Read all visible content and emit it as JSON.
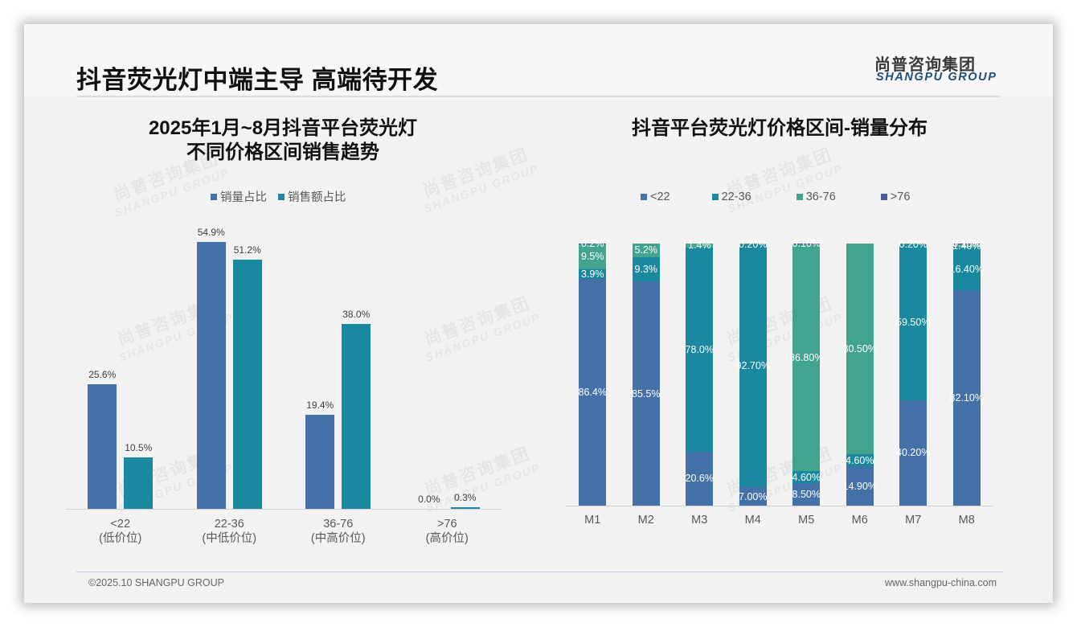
{
  "header": {
    "title": "抖音荧光灯中端主导 高端待开发",
    "logo_cn": "尚普咨询集团",
    "logo_en": "SHANGPU GROUP"
  },
  "watermark": {
    "cn": "尚普咨询集团",
    "en": "SHANGPU GROUP"
  },
  "footer": {
    "copyright": "©2025.10 SHANGPU GROUP",
    "website": "www.shangpu-china.com"
  },
  "colors": {
    "blue": "#4472a8",
    "teal": "#1a889e",
    "green": "#42a38e",
    "navy": "#4a5e95"
  },
  "chart_data": [
    {
      "type": "bar",
      "title": "2025年1月~8月抖音平台荧光灯\n不同价格区间销售趋势",
      "title_lines": [
        "2025年1月~8月抖音平台荧光灯",
        "不同价格区间销售趋势"
      ],
      "categories": [
        "<22",
        "22-36",
        "36-76",
        ">76"
      ],
      "category_sublabels": [
        "(低价位)",
        "(中低价位)",
        "(中高价位)",
        "(高价位)"
      ],
      "series": [
        {
          "name": "销量占比",
          "color": "#4472a8",
          "values": [
            25.6,
            54.9,
            19.4,
            0.0
          ],
          "labels": [
            "25.6%",
            "54.9%",
            "19.4%",
            "0.0%"
          ]
        },
        {
          "name": "销售额占比",
          "color": "#1a889e",
          "values": [
            10.5,
            51.2,
            38.0,
            0.3
          ],
          "labels": [
            "10.5%",
            "51.2%",
            "38.0%",
            "0.3%"
          ]
        }
      ],
      "xlabel": "",
      "ylabel": "",
      "ylim": [
        0,
        60
      ],
      "grid": false,
      "legend_position": "top"
    },
    {
      "type": "bar",
      "stacked": true,
      "percent": true,
      "title": "抖音平台荧光灯价格区间-销量分布",
      "title_lines": [
        "抖音平台荧光灯价格区间-销量分布"
      ],
      "categories": [
        "M1",
        "M2",
        "M3",
        "M4",
        "M5",
        "M6",
        "M7",
        "M8"
      ],
      "series": [
        {
          "name": "<22",
          "color": "#4472a8",
          "values": [
            86.4,
            85.5,
            20.6,
            7.0,
            8.5,
            14.9,
            40.2,
            82.1
          ],
          "labels": [
            "86.4%",
            "85.5%",
            "20.6%",
            "7.00%",
            "8.50%",
            "14.90%",
            "40.20%",
            "82.10%"
          ]
        },
        {
          "name": "22-36",
          "color": "#1a889e",
          "values": [
            3.9,
            9.3,
            78.0,
            92.7,
            4.6,
            4.6,
            59.5,
            16.4
          ],
          "labels": [
            "3.9%",
            "9.3%",
            "78.0%",
            "92.70%",
            "4.60%",
            "4.60%",
            "59.50%",
            "16.40%"
          ]
        },
        {
          "name": "36-76",
          "color": "#42a38e",
          "values": [
            9.5,
            5.2,
            1.4,
            0.2,
            86.8,
            80.5,
            0.2,
            1.4
          ],
          "labels": [
            "9.5%",
            "5.2%",
            "1.4%",
            "0.20%",
            "86.80%",
            "80.50%",
            "0.20%",
            "1.40%"
          ]
        },
        {
          "name": ">76",
          "color": "#4a5e95",
          "values": [
            0.2,
            0,
            0,
            0,
            0.1,
            0,
            0,
            0.1
          ],
          "labels": [
            "0.2%",
            "",
            "",
            "",
            "0.10%",
            "",
            "",
            "0.10%"
          ]
        }
      ],
      "xlabel": "",
      "ylabel": "",
      "ylim": [
        0,
        100
      ],
      "grid": false,
      "legend_position": "top"
    }
  ]
}
